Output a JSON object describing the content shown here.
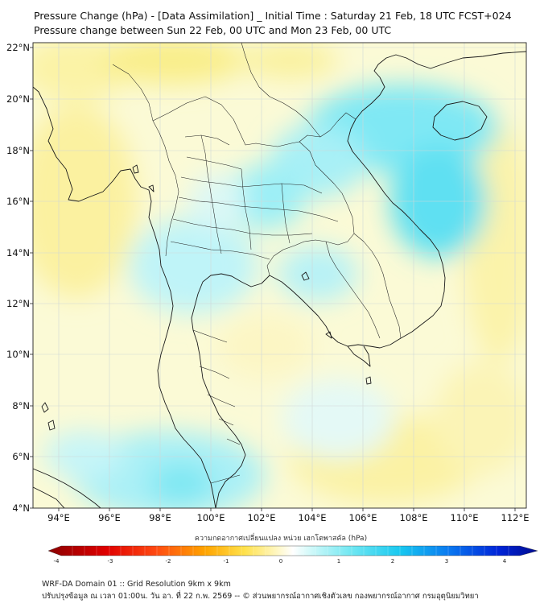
{
  "titles": {
    "line1": "Pressure Change (hPa) - [Data Assimilation] _ Initial Time : Saturday 21 Feb, 18 UTC FCST+024",
    "line2": "Pressure change between Sun 22 Feb, 00 UTC and Mon 23 Feb, 00 UTC"
  },
  "map": {
    "lat_labels": [
      "22°N",
      "20°N",
      "18°N",
      "16°N",
      "14°N",
      "12°N",
      "10°N",
      "8°N",
      "6°N",
      "4°N"
    ],
    "lon_labels": [
      "94°E",
      "96°E",
      "98°E",
      "100°E",
      "102°E",
      "104°E",
      "106°E",
      "108°E",
      "110°E",
      "112°E"
    ],
    "lat_range": [
      4,
      22
    ],
    "lon_range": [
      93,
      112.5
    ]
  },
  "colorbar": {
    "title": "ความกดอากาศเปลี่ยนแปลง หน่วย เฮกโตพาสคัล (hPa)",
    "tick_labels": [
      "-4",
      "-3",
      "-2",
      "-1",
      "0",
      "1",
      "2",
      "3",
      "4"
    ],
    "range": [
      -4,
      4
    ],
    "colors": {
      "negative_strong": "#8b0000",
      "negative_mid": "#ff2a1a",
      "negative_light": "#ffd200",
      "near_zero": "#fffde0",
      "positive_light": "#9ff2f5",
      "positive_mid": "#1ecff0",
      "positive_strong": "#0010c0"
    }
  },
  "footer": {
    "line1": "WRF-DA Domain 01 :: Grid Resolution 9km x 9km",
    "line2": "ปรับปรุงข้อมูล ณ เวลา 01:00น. วัน อา. ที่ 22 ก.พ. 2569 -- © ส่วนพยากรณ์อากาศเชิงตัวเลข กองพยากรณ์อากาศ กรมอุตุนิยมวิทยา"
  }
}
